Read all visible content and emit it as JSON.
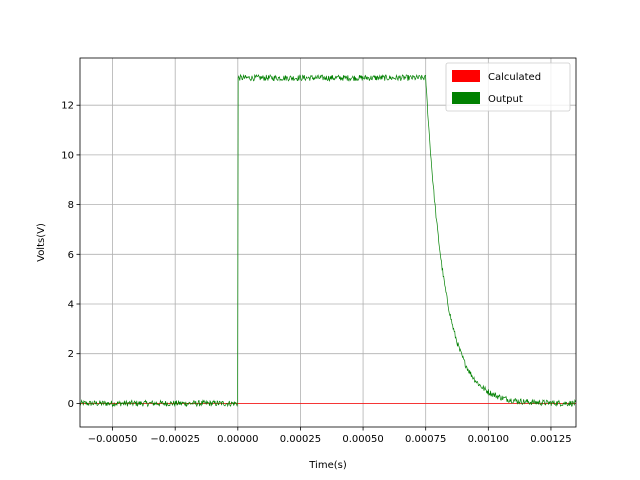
{
  "chart_data": {
    "type": "line",
    "title": "",
    "xlabel": "Time(s)",
    "ylabel": "Volts(V)",
    "xlim": [
      -0.00063,
      0.00135
    ],
    "ylim": [
      -0.95,
      13.9
    ],
    "grid": true,
    "legend_position": "top-right",
    "x_ticks": [
      -0.0005,
      -0.00025,
      0.0,
      0.00025,
      0.0005,
      0.00075,
      0.001,
      0.00125
    ],
    "x_tick_labels": [
      "−0.00050",
      "−0.00025",
      "0.00000",
      "0.00025",
      "0.00050",
      "0.00075",
      "0.00100",
      "0.00125"
    ],
    "y_ticks": [
      0,
      2,
      4,
      6,
      8,
      10,
      12
    ],
    "y_tick_labels": [
      "0",
      "2",
      "4",
      "6",
      "8",
      "10",
      "12"
    ],
    "series": [
      {
        "name": "Calculated",
        "color": "#ff0000",
        "x": [
          -0.00063,
          0.00135
        ],
        "y": [
          0,
          0
        ]
      },
      {
        "name": "Output",
        "color": "#008000",
        "pulse": {
          "baseline": 0,
          "high": 13.1,
          "rise_time": 0.0,
          "fall_start": 0.00075,
          "decay_tau": 7.5e-05,
          "noise_amplitude": 0.12
        }
      }
    ]
  }
}
